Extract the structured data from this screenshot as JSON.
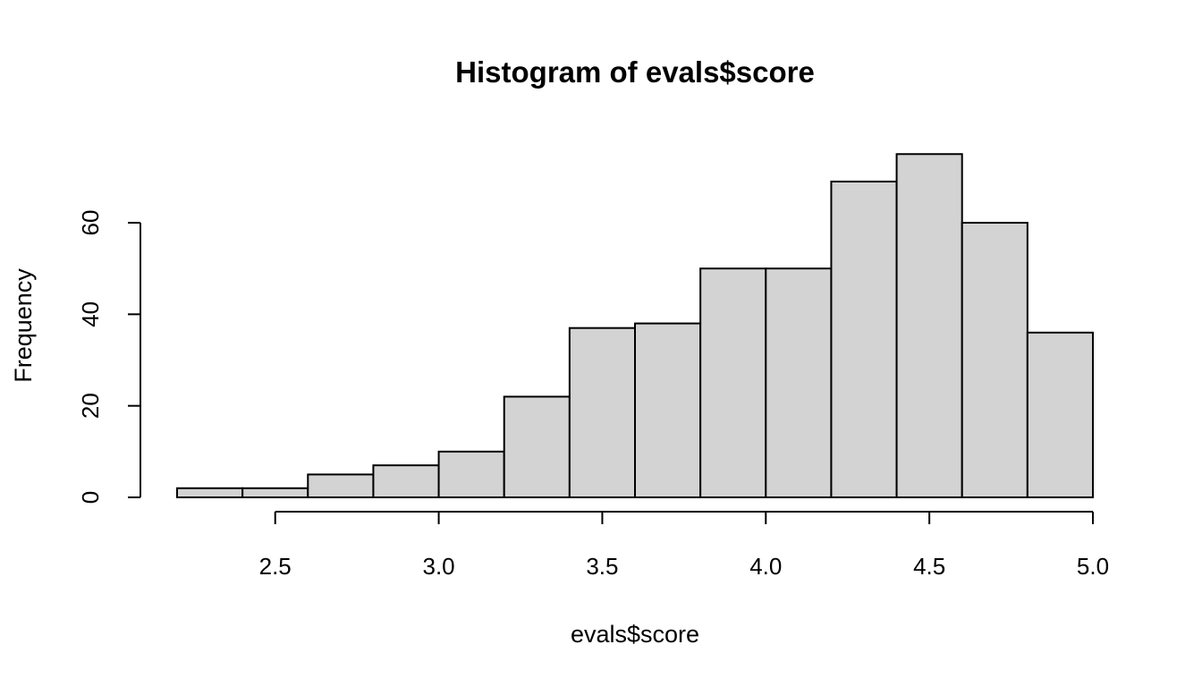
{
  "chart_data": {
    "type": "histogram",
    "title": "Histogram of evals$score",
    "xlabel": "evals$score",
    "ylabel": "Frequency",
    "bins": [
      {
        "from": 2.2,
        "to": 2.4,
        "count": 2
      },
      {
        "from": 2.4,
        "to": 2.6,
        "count": 2
      },
      {
        "from": 2.6,
        "to": 2.8,
        "count": 5
      },
      {
        "from": 2.8,
        "to": 3.0,
        "count": 7
      },
      {
        "from": 3.0,
        "to": 3.2,
        "count": 10
      },
      {
        "from": 3.2,
        "to": 3.4,
        "count": 22
      },
      {
        "from": 3.4,
        "to": 3.6,
        "count": 37
      },
      {
        "from": 3.6,
        "to": 3.8,
        "count": 38
      },
      {
        "from": 3.8,
        "to": 4.0,
        "count": 50
      },
      {
        "from": 4.0,
        "to": 4.2,
        "count": 50
      },
      {
        "from": 4.2,
        "to": 4.4,
        "count": 69
      },
      {
        "from": 4.4,
        "to": 4.6,
        "count": 75
      },
      {
        "from": 4.6,
        "to": 4.8,
        "count": 60
      },
      {
        "from": 4.8,
        "to": 5.0,
        "count": 36
      }
    ],
    "x_ticks": [
      "2.5",
      "3.0",
      "3.5",
      "4.0",
      "4.5",
      "5.0"
    ],
    "y_ticks": [
      "0",
      "20",
      "40",
      "60"
    ],
    "xlim": [
      2.2,
      5.0
    ],
    "ylim": [
      0,
      75
    ],
    "grid": false,
    "legend": "none",
    "bar_fill": "#d3d3d3",
    "bar_stroke": "#000000"
  }
}
